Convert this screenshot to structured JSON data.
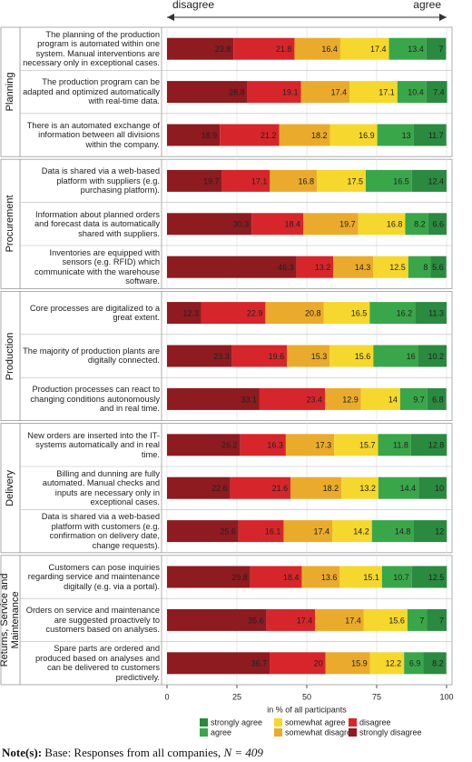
{
  "chart_data": {
    "type": "bar",
    "stacked": true,
    "orientation": "horizontal",
    "direction_labels": {
      "left": "disagree",
      "right": "agree"
    },
    "xlabel": "in % of all participants",
    "xlim": [
      0,
      100
    ],
    "xticks": [
      0,
      25,
      50,
      75,
      100
    ],
    "grid": true,
    "series": [
      {
        "name": "strongly disagree",
        "color": "#8e1b1f"
      },
      {
        "name": "disagree",
        "color": "#d7262b"
      },
      {
        "name": "somewhat disagree",
        "color": "#eaab2c"
      },
      {
        "name": "somewhat agree",
        "color": "#f6d72d"
      },
      {
        "name": "agree",
        "color": "#3aa64a"
      },
      {
        "name": "strongly agree",
        "color": "#2a8a3f"
      }
    ],
    "panels": [
      {
        "name": "Planning",
        "categories": [
          "The planning of the production program is automated within one system. Manual interventions are necessary only in exceptional cases.",
          "The production program can be adapted and optimized automatically with real-time data.",
          "There is an automated exchange of information between all divisions within the company."
        ],
        "values": [
          [
            23.8,
            21.8,
            16.4,
            17.4,
            13.4,
            7
          ],
          [
            28.8,
            19.1,
            17.4,
            17.1,
            10.4,
            7.4
          ],
          [
            18.9,
            21.2,
            18.2,
            16.9,
            13,
            11.7
          ]
        ]
      },
      {
        "name": "Procurement",
        "categories": [
          "Data is shared via a web-based platform with suppliers (e.g. purchasing platform).",
          "Information about planned orders and forecast data is automatically shared with suppliers.",
          "Inventories are equipped with sensors (e.g. RFID) which communicate with the warehouse software."
        ],
        "values": [
          [
            19.7,
            17.1,
            16.8,
            17.5,
            16.5,
            12.4
          ],
          [
            30.3,
            18.4,
            19.7,
            16.8,
            8.2,
            6.6
          ],
          [
            46.3,
            13.2,
            14.3,
            12.5,
            8,
            5.6
          ]
        ]
      },
      {
        "name": "Production",
        "categories": [
          "Core processes are digitalized to a great extent.",
          "The majority of production plants are digitally connected.",
          "Production processes can react to changing conditions autonomously and in real time."
        ],
        "values": [
          [
            12.3,
            22.9,
            20.8,
            16.5,
            16.2,
            11.3
          ],
          [
            23.3,
            19.6,
            15.3,
            15.6,
            16,
            10.2
          ],
          [
            33.1,
            23.4,
            12.9,
            14,
            9.7,
            6.8
          ]
        ]
      },
      {
        "name": "Delivery",
        "categories": [
          "New orders are inserted into the IT-systems automatically and in real time.",
          "Billing and dunning are fully automated. Manual checks and inputs are necessary only in exceptional cases.",
          "Data is shared via a web-based platform with customers (e.g. confirmation on delivery date, change requests)."
        ],
        "values": [
          [
            26.2,
            16.3,
            17.3,
            15.7,
            11.8,
            12.8
          ],
          [
            22.6,
            21.6,
            18.2,
            13.2,
            14.4,
            10
          ],
          [
            25.6,
            16.1,
            17.4,
            14.2,
            14.8,
            12
          ]
        ]
      },
      {
        "name": "Returns, Service and Maintenance",
        "categories": [
          "Customers can pose inquiries regarding service and maintenance digitally (e.g. via a portal).",
          "Orders on service and maintenance are suggested proactively to customers based on analyses.",
          "Spare parts are ordered and produced based on analyses and can be delivered to customers predictively."
        ],
        "values": [
          [
            29.8,
            18.4,
            13.6,
            15.1,
            10.7,
            12.5
          ],
          [
            35.6,
            17.4,
            17.4,
            15.6,
            7,
            7
          ],
          [
            36.7,
            20,
            15.9,
            12.2,
            6.9,
            8.2
          ]
        ]
      }
    ],
    "note": {
      "label": "Note(s):",
      "text": "Base: Responses from all companies,",
      "n": "N = 409"
    }
  }
}
